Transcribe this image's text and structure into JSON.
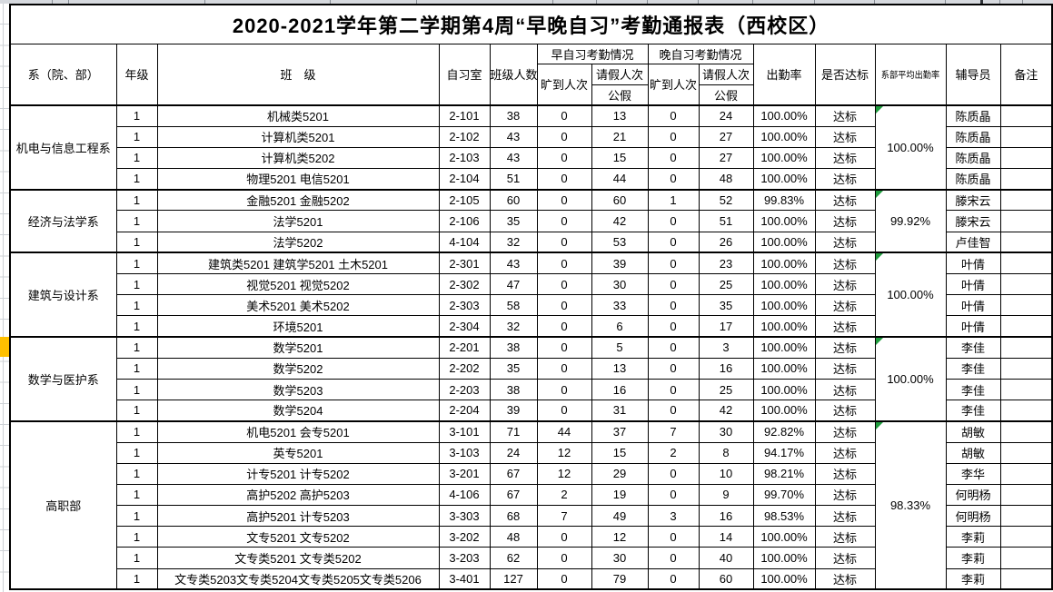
{
  "title": "2020-2021学年第二学期第4周“早晚自习”考勤通报表（西校区）",
  "header": {
    "dept": "系（院、部）",
    "grade": "年级",
    "class": "班　级",
    "room": "自习室",
    "size": "班级人数",
    "morning": "早自习考勤情况",
    "evening": "晚自习考勤情况",
    "absent": "旷到人次",
    "leave": "请假人次",
    "public_leave": "公假",
    "rate": "出勤率",
    "standard": "是否达标",
    "dept_avg": "系部平均出勤率",
    "counselor": "辅导员",
    "remark": "备注"
  },
  "colors": {
    "triangle_green": "#1f9c3d",
    "gutter_highlight": "#ffc000"
  },
  "sections": [
    {
      "name": "机电与信息工程系",
      "dept_avg": "100.00%",
      "rows": [
        {
          "grade": "1",
          "class": "机械类5201",
          "room": "2-101",
          "size": "38",
          "m_absent": "0",
          "m_leave": "13",
          "e_absent": "0",
          "e_leave": "24",
          "rate": "100.00%",
          "standard": "达标",
          "counselor": "陈质晶",
          "remark": ""
        },
        {
          "grade": "1",
          "class": "计算机类5201",
          "room": "2-102",
          "size": "43",
          "m_absent": "0",
          "m_leave": "21",
          "e_absent": "0",
          "e_leave": "27",
          "rate": "100.00%",
          "standard": "达标",
          "counselor": "陈质晶",
          "remark": ""
        },
        {
          "grade": "1",
          "class": "计算机类5202",
          "room": "2-103",
          "size": "43",
          "m_absent": "0",
          "m_leave": "15",
          "e_absent": "0",
          "e_leave": "27",
          "rate": "100.00%",
          "standard": "达标",
          "counselor": "陈质晶",
          "remark": ""
        },
        {
          "grade": "1",
          "class": "物理5201 电信5201",
          "room": "2-104",
          "size": "51",
          "m_absent": "0",
          "m_leave": "44",
          "e_absent": "0",
          "e_leave": "48",
          "rate": "100.00%",
          "standard": "达标",
          "counselor": "陈质晶",
          "remark": ""
        }
      ]
    },
    {
      "name": "经济与法学系",
      "dept_avg": "99.92%",
      "rows": [
        {
          "grade": "1",
          "class": "金融5201 金融5202",
          "room": "2-105",
          "size": "60",
          "m_absent": "0",
          "m_leave": "60",
          "e_absent": "1",
          "e_leave": "52",
          "rate": "99.83%",
          "standard": "达标",
          "counselor": "滕宋云",
          "remark": ""
        },
        {
          "grade": "1",
          "class": "法学5201",
          "room": "2-106",
          "size": "35",
          "m_absent": "0",
          "m_leave": "42",
          "e_absent": "0",
          "e_leave": "51",
          "rate": "100.00%",
          "standard": "达标",
          "counselor": "滕宋云",
          "remark": ""
        },
        {
          "grade": "1",
          "class": "法学5202",
          "room": "4-104",
          "size": "32",
          "m_absent": "0",
          "m_leave": "53",
          "e_absent": "0",
          "e_leave": "26",
          "rate": "100.00%",
          "standard": "达标",
          "counselor": "卢佳智",
          "remark": ""
        }
      ]
    },
    {
      "name": "建筑与设计系",
      "dept_avg": "100.00%",
      "rows": [
        {
          "grade": "1",
          "class": "建筑类5201  建筑学5201  土木5201",
          "room": "2-301",
          "size": "43",
          "m_absent": "0",
          "m_leave": "39",
          "e_absent": "0",
          "e_leave": "23",
          "rate": "100.00%",
          "standard": "达标",
          "counselor": "叶倩",
          "remark": ""
        },
        {
          "grade": "1",
          "class": "视觉5201 视觉5202",
          "room": "2-302",
          "size": "47",
          "m_absent": "0",
          "m_leave": "30",
          "e_absent": "0",
          "e_leave": "25",
          "rate": "100.00%",
          "standard": "达标",
          "counselor": "叶倩",
          "remark": ""
        },
        {
          "grade": "1",
          "class": "美术5201 美术5202",
          "room": "2-303",
          "size": "58",
          "m_absent": "0",
          "m_leave": "33",
          "e_absent": "0",
          "e_leave": "35",
          "rate": "100.00%",
          "standard": "达标",
          "counselor": "叶倩",
          "remark": ""
        },
        {
          "grade": "1",
          "class": "环境5201",
          "room": "2-304",
          "size": "32",
          "m_absent": "0",
          "m_leave": "6",
          "e_absent": "0",
          "e_leave": "17",
          "rate": "100.00%",
          "standard": "达标",
          "counselor": "叶倩",
          "remark": ""
        }
      ]
    },
    {
      "name": "数学与医护系",
      "dept_avg": "100.00%",
      "rows": [
        {
          "grade": "1",
          "class": "数学5201",
          "room": "2-201",
          "size": "38",
          "m_absent": "0",
          "m_leave": "5",
          "e_absent": "0",
          "e_leave": "3",
          "rate": "100.00%",
          "standard": "达标",
          "counselor": "李佳",
          "remark": ""
        },
        {
          "grade": "1",
          "class": "数学5202",
          "room": "2-202",
          "size": "35",
          "m_absent": "0",
          "m_leave": "13",
          "e_absent": "0",
          "e_leave": "16",
          "rate": "100.00%",
          "standard": "达标",
          "counselor": "李佳",
          "remark": ""
        },
        {
          "grade": "1",
          "class": "数学5203",
          "room": "2-203",
          "size": "38",
          "m_absent": "0",
          "m_leave": "16",
          "e_absent": "0",
          "e_leave": "25",
          "rate": "100.00%",
          "standard": "达标",
          "counselor": "李佳",
          "remark": ""
        },
        {
          "grade": "1",
          "class": "数学5204",
          "room": "2-204",
          "size": "39",
          "m_absent": "0",
          "m_leave": "31",
          "e_absent": "0",
          "e_leave": "42",
          "rate": "100.00%",
          "standard": "达标",
          "counselor": "李佳",
          "remark": ""
        }
      ]
    },
    {
      "name": "高职部",
      "dept_avg": "98.33%",
      "rows": [
        {
          "grade": "1",
          "class": "机电5201 会专5201",
          "room": "3-101",
          "size": "71",
          "m_absent": "44",
          "m_leave": "37",
          "e_absent": "7",
          "e_leave": "30",
          "rate": "92.82%",
          "standard": "达标",
          "counselor": "胡敏",
          "remark": ""
        },
        {
          "grade": "1",
          "class": "英专5201",
          "room": "3-103",
          "size": "24",
          "m_absent": "12",
          "m_leave": "15",
          "e_absent": "2",
          "e_leave": "8",
          "rate": "94.17%",
          "standard": "达标",
          "counselor": "胡敏",
          "remark": ""
        },
        {
          "grade": "1",
          "class": "计专5201 计专5202",
          "room": "3-201",
          "size": "67",
          "m_absent": "12",
          "m_leave": "29",
          "e_absent": "0",
          "e_leave": "10",
          "rate": "98.21%",
          "standard": "达标",
          "counselor": "李华",
          "remark": ""
        },
        {
          "grade": "1",
          "class": "高护5202 高护5203",
          "room": "4-106",
          "size": "67",
          "m_absent": "2",
          "m_leave": "19",
          "e_absent": "0",
          "e_leave": "9",
          "rate": "99.70%",
          "standard": "达标",
          "counselor": "何明杨",
          "remark": ""
        },
        {
          "grade": "1",
          "class": "高护5201 计专5203",
          "room": "3-303",
          "size": "68",
          "m_absent": "7",
          "m_leave": "49",
          "e_absent": "3",
          "e_leave": "16",
          "rate": "98.53%",
          "standard": "达标",
          "counselor": "何明杨",
          "remark": ""
        },
        {
          "grade": "1",
          "class": "文专5201  文专5202",
          "room": "3-202",
          "size": "48",
          "m_absent": "0",
          "m_leave": "12",
          "e_absent": "0",
          "e_leave": "14",
          "rate": "100.00%",
          "standard": "达标",
          "counselor": "李莉",
          "remark": ""
        },
        {
          "grade": "1",
          "class": "文专类5201 文专类5202",
          "room": "3-203",
          "size": "62",
          "m_absent": "0",
          "m_leave": "30",
          "e_absent": "0",
          "e_leave": "40",
          "rate": "100.00%",
          "standard": "达标",
          "counselor": "李莉",
          "remark": ""
        },
        {
          "grade": "1",
          "class": "文专类5203文专类5204文专类5205文专类5206",
          "room": "3-401",
          "size": "127",
          "m_absent": "0",
          "m_leave": "79",
          "e_absent": "0",
          "e_leave": "60",
          "rate": "100.00%",
          "standard": "达标",
          "counselor": "李莉",
          "remark": ""
        }
      ]
    }
  ]
}
